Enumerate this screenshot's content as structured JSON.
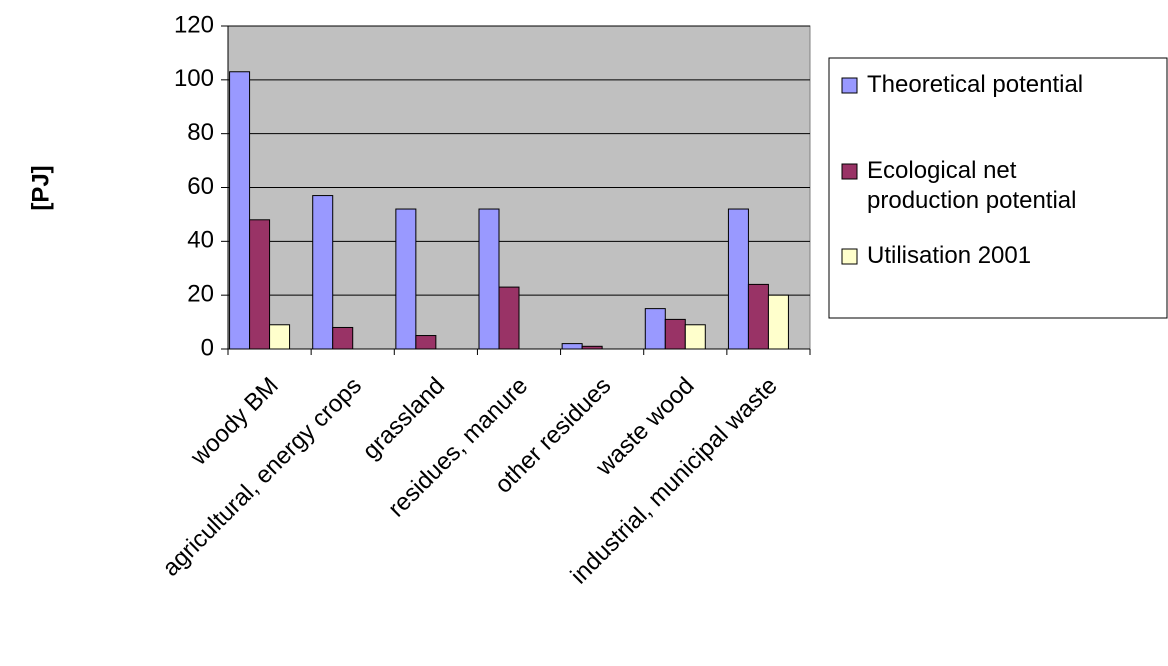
{
  "chart_data": {
    "type": "bar",
    "title": "",
    "xlabel": "",
    "ylabel": "[PJ]",
    "ylim": [
      0,
      120
    ],
    "yticks": [
      0,
      20,
      40,
      60,
      80,
      100,
      120
    ],
    "grid": true,
    "legend_position": "right",
    "categories": [
      "woody BM",
      "agricultural, energy crops",
      "grassland",
      "residues, manure",
      "other residues",
      "waste wood",
      "industrial, municipal waste"
    ],
    "series": [
      {
        "name": "Theoretical potential",
        "color": "#9999FF",
        "values": [
          103,
          57,
          52,
          52,
          2,
          15,
          52
        ]
      },
      {
        "name": "Ecological net production potential",
        "legend_lines": [
          "Ecological net",
          "production potential"
        ],
        "color": "#993366",
        "values": [
          48,
          8,
          5,
          23,
          1,
          11,
          24
        ]
      },
      {
        "name": "Utilisation 2001",
        "color": "#FFFFCC",
        "values": [
          9,
          0,
          0,
          0,
          0,
          9,
          20
        ]
      }
    ],
    "plot_background": "#C0C0C0"
  }
}
